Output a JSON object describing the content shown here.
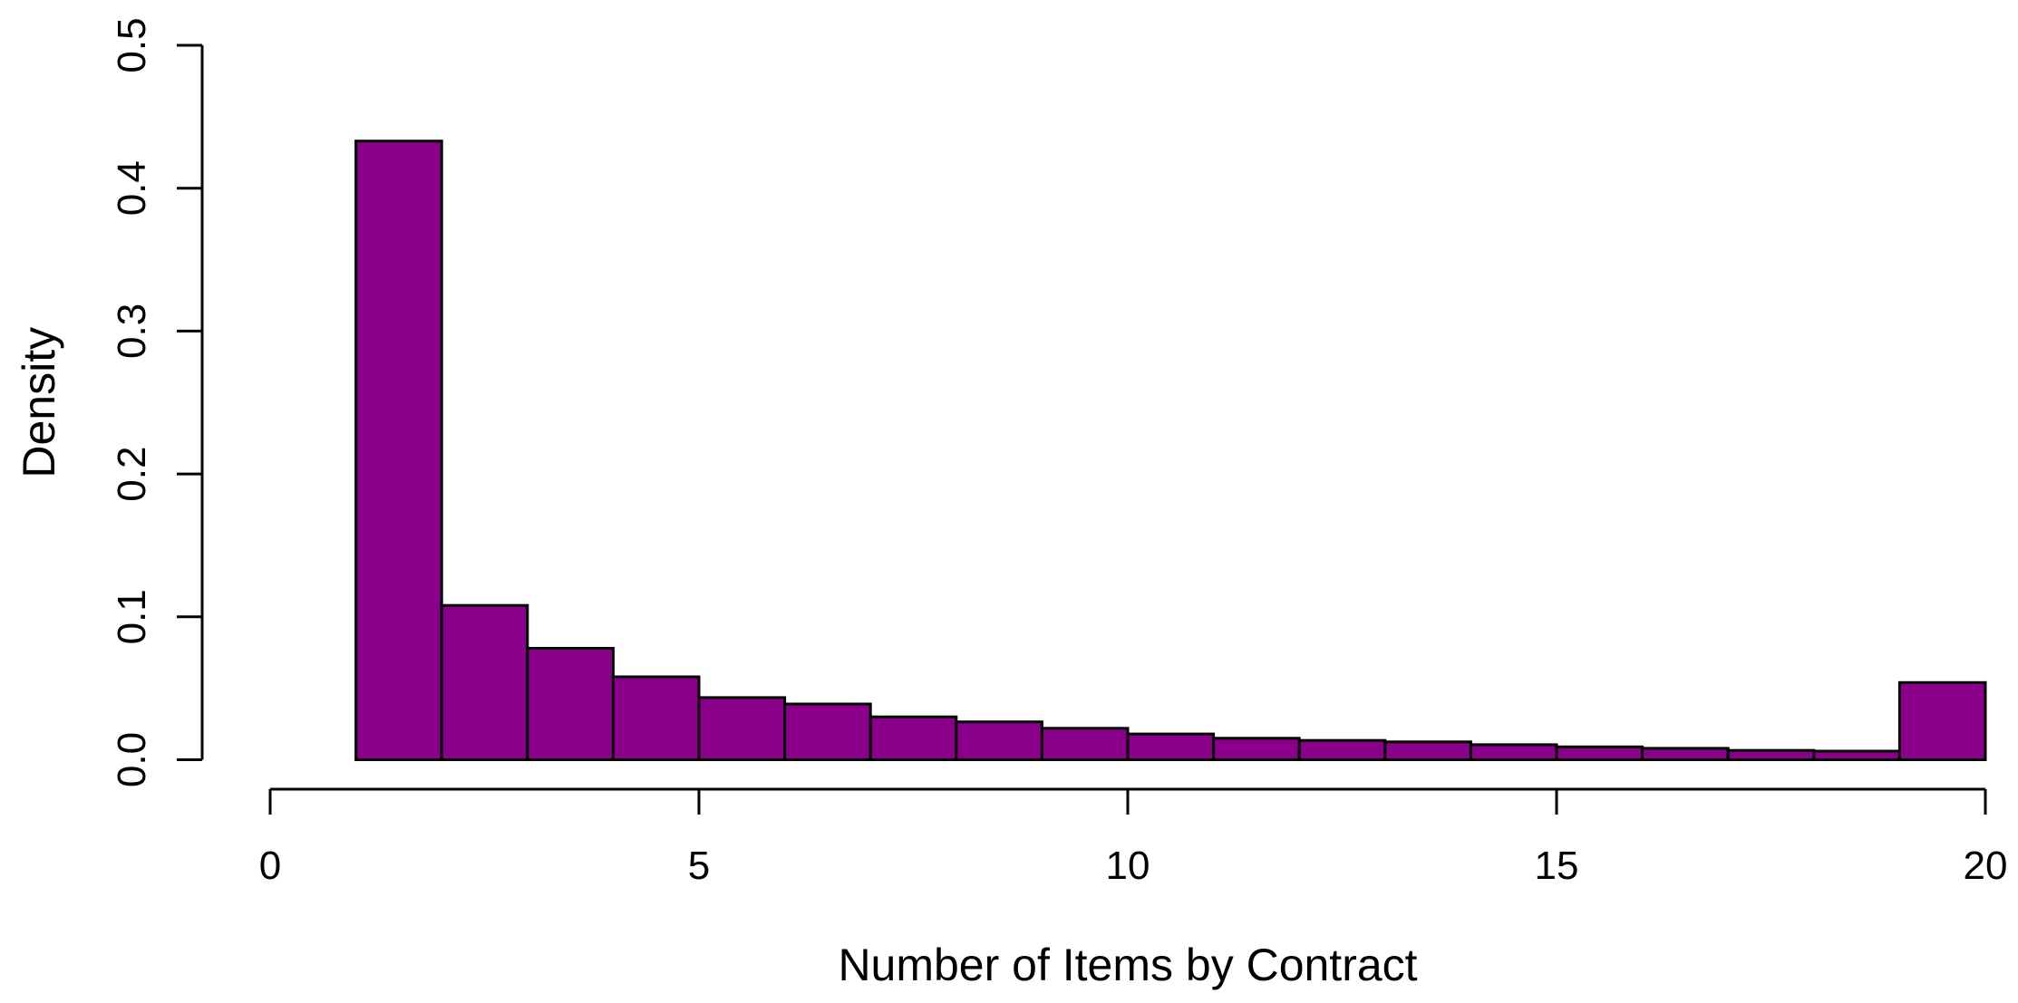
{
  "chart_data": {
    "type": "bar",
    "subtype": "histogram",
    "title": "",
    "xlabel": "Number of Items by Contract",
    "ylabel": "Density",
    "bar_fill_color": "#8B008B",
    "bar_border_color": "#000000",
    "axis_color": "#000000",
    "background_color": "#ffffff",
    "xlim": [
      0,
      20
    ],
    "ylim": [
      0,
      0.5
    ],
    "grid": false,
    "legend": null,
    "x_ticks": [
      0,
      5,
      10,
      15,
      20
    ],
    "x_tick_labels": [
      "0",
      "5",
      "10",
      "15",
      "20"
    ],
    "y_ticks": [
      0.0,
      0.1,
      0.2,
      0.3,
      0.4,
      0.5
    ],
    "y_tick_labels": [
      "0.0",
      "0.1",
      "0.2",
      "0.3",
      "0.4",
      "0.5"
    ],
    "bin_edges": [
      1,
      2,
      3,
      4,
      5,
      6,
      7,
      8,
      9,
      10,
      11,
      12,
      13,
      14,
      15,
      16,
      17,
      18,
      19,
      20
    ],
    "values": [
      0.433,
      0.108,
      0.078,
      0.058,
      0.0435,
      0.039,
      0.03,
      0.0265,
      0.022,
      0.018,
      0.015,
      0.0135,
      0.0125,
      0.0105,
      0.009,
      0.008,
      0.0065,
      0.006,
      0.054
    ]
  }
}
